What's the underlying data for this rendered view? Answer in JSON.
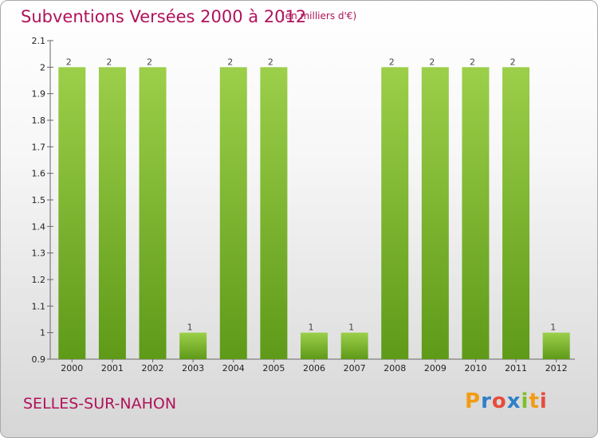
{
  "title": "Subventions Versées 2000 à 2012",
  "subtitle": "(en milliers d'€)",
  "town": "SELLES-SUR-NAHON",
  "logo": {
    "letters": [
      "P",
      "r",
      "o",
      "x",
      "i",
      "t",
      "i"
    ],
    "colors": [
      "#f39c12",
      "#2f7fc8",
      "#e74c3c",
      "#2f7fc8",
      "#7cbf2a",
      "#f39c12",
      "#e74c3c"
    ]
  },
  "colors": {
    "bar_top": "#9ccf4a",
    "bar_bottom": "#5e9a18",
    "title": "#b0125b"
  },
  "chart_data": {
    "type": "bar",
    "title": "Subventions Versées 2000 à 2012",
    "subtitle": "(en milliers d'€)",
    "categories": [
      "2000",
      "2001",
      "2002",
      "2003",
      "2004",
      "2005",
      "2006",
      "2007",
      "2008",
      "2009",
      "2010",
      "2011",
      "2012"
    ],
    "values": [
      2,
      2,
      2,
      1,
      2,
      2,
      1,
      1,
      2,
      2,
      2,
      2,
      1
    ],
    "value_labels": [
      "2",
      "2",
      "2",
      "1",
      "2",
      "2",
      "1",
      "1",
      "2",
      "2",
      "2",
      "2",
      "1"
    ],
    "ylim": [
      0.9,
      2.1
    ],
    "yticks": [
      0.9,
      1,
      1.1,
      1.2,
      1.3,
      1.4,
      1.5,
      1.6,
      1.7,
      1.8,
      1.9,
      2,
      2.1
    ],
    "ytick_labels": [
      "0.9",
      "1",
      "1.1",
      "1.2",
      "1.3",
      "1.4",
      "1.5",
      "1.6",
      "1.7",
      "1.8",
      "1.9",
      "2",
      "2.1"
    ],
    "grid": false
  }
}
